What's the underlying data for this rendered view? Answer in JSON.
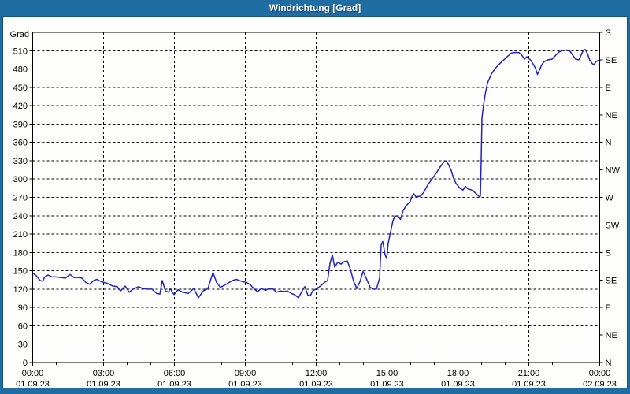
{
  "window": {
    "title": "Windrichtung [Grad]"
  },
  "colors": {
    "frame": "#1f6da3",
    "frame_inner_edge": "#16507d",
    "title_text": "#ffffff",
    "content_bg": "#fdfdfa",
    "plot_bg": "#fefefc",
    "axis": "#000000",
    "grid": "#000000",
    "line": "#2222c4",
    "label_text": "#000000"
  },
  "chart_data": {
    "type": "line",
    "title": "Windrichtung [Grad]",
    "ylabel_left": "Grad",
    "ylim": [
      0,
      540
    ],
    "xlim_hours": [
      0,
      24
    ],
    "grid": "dashed",
    "y_left_ticks": [
      0,
      30,
      60,
      90,
      120,
      150,
      180,
      210,
      240,
      270,
      300,
      330,
      360,
      390,
      420,
      450,
      480,
      510
    ],
    "y_right_ticks": [
      {
        "deg": 540,
        "label": "S"
      },
      {
        "deg": 495,
        "label": "SE"
      },
      {
        "deg": 450,
        "label": "E"
      },
      {
        "deg": 405,
        "label": "NE"
      },
      {
        "deg": 360,
        "label": "N"
      },
      {
        "deg": 315,
        "label": "NW"
      },
      {
        "deg": 270,
        "label": "W"
      },
      {
        "deg": 225,
        "label": "SW"
      },
      {
        "deg": 180,
        "label": "S"
      },
      {
        "deg": 135,
        "label": "SE"
      },
      {
        "deg": 90,
        "label": "E"
      },
      {
        "deg": 45,
        "label": "NE"
      },
      {
        "deg": 0,
        "label": "N"
      }
    ],
    "x_major_ticks": [
      {
        "hour": 0,
        "time": "00:00",
        "date": "01.09.23"
      },
      {
        "hour": 3,
        "time": "03:00",
        "date": "01.09.23"
      },
      {
        "hour": 6,
        "time": "06:00",
        "date": "01.09.23"
      },
      {
        "hour": 9,
        "time": "09:00",
        "date": "01.09.23"
      },
      {
        "hour": 12,
        "time": "12:00",
        "date": "01.09.23"
      },
      {
        "hour": 15,
        "time": "15:00",
        "date": "01.09.23"
      },
      {
        "hour": 18,
        "time": "18:00",
        "date": "01.09.23"
      },
      {
        "hour": 21,
        "time": "21:00",
        "date": "01.09.23"
      },
      {
        "hour": 24,
        "time": "00:00",
        "date": "02.09.23"
      }
    ],
    "x_minor_step_hours": 1,
    "series": [
      {
        "name": "Windrichtung",
        "color": "#2222c4",
        "points_t_min_deg": [
          [
            0,
            146
          ],
          [
            9,
            142
          ],
          [
            19,
            134
          ],
          [
            25,
            133
          ],
          [
            31,
            140
          ],
          [
            39,
            143
          ],
          [
            49,
            140
          ],
          [
            59,
            140
          ],
          [
            71,
            139
          ],
          [
            83,
            138
          ],
          [
            95,
            144
          ],
          [
            105,
            139
          ],
          [
            115,
            139
          ],
          [
            125,
            138
          ],
          [
            135,
            131
          ],
          [
            145,
            128
          ],
          [
            155,
            134
          ],
          [
            163,
            136
          ],
          [
            175,
            132
          ],
          [
            181,
            131
          ],
          [
            191,
            129
          ],
          [
            203,
            125
          ],
          [
            215,
            124
          ],
          [
            223,
            117
          ],
          [
            235,
            125
          ],
          [
            245,
            115
          ],
          [
            255,
            120
          ],
          [
            269,
            124
          ],
          [
            279,
            121
          ],
          [
            291,
            120
          ],
          [
            303,
            120
          ],
          [
            315,
            113
          ],
          [
            323,
            112
          ],
          [
            329,
            134
          ],
          [
            337,
            117
          ],
          [
            345,
            115
          ],
          [
            349,
            121
          ],
          [
            359,
            111
          ],
          [
            369,
            119
          ],
          [
            381,
            115
          ],
          [
            395,
            113
          ],
          [
            409,
            121
          ],
          [
            421,
            106
          ],
          [
            433,
            117
          ],
          [
            445,
            121
          ],
          [
            458,
            147
          ],
          [
            467,
            131
          ],
          [
            477,
            123
          ],
          [
            489,
            127
          ],
          [
            499,
            131
          ],
          [
            507,
            134
          ],
          [
            517,
            136
          ],
          [
            525,
            134
          ],
          [
            535,
            132
          ],
          [
            543,
            131
          ],
          [
            553,
            127
          ],
          [
            563,
            120
          ],
          [
            571,
            116
          ],
          [
            581,
            121
          ],
          [
            591,
            118
          ],
          [
            601,
            121
          ],
          [
            611,
            120
          ],
          [
            619,
            115
          ],
          [
            629,
            117
          ],
          [
            639,
            116
          ],
          [
            647,
            117
          ],
          [
            657,
            113
          ],
          [
            665,
            111
          ],
          [
            675,
            106
          ],
          [
            685,
            118
          ],
          [
            691,
            124
          ],
          [
            699,
            110
          ],
          [
            705,
            109
          ],
          [
            711,
            117
          ],
          [
            721,
            121
          ],
          [
            731,
            125
          ],
          [
            741,
            131
          ],
          [
            749,
            134
          ],
          [
            755,
            162
          ],
          [
            761,
            176
          ],
          [
            767,
            156
          ],
          [
            775,
            164
          ],
          [
            783,
            161
          ],
          [
            791,
            165
          ],
          [
            799,
            166
          ],
          [
            807,
            152
          ],
          [
            815,
            133
          ],
          [
            823,
            121
          ],
          [
            831,
            132
          ],
          [
            839,
            149
          ],
          [
            847,
            138
          ],
          [
            857,
            123
          ],
          [
            865,
            120
          ],
          [
            873,
            120
          ],
          [
            881,
            138
          ],
          [
            885,
            192
          ],
          [
            889,
            198
          ],
          [
            895,
            176
          ],
          [
            899,
            170
          ],
          [
            903,
            195
          ],
          [
            907,
            208
          ],
          [
            911,
            220
          ],
          [
            915,
            232
          ],
          [
            919,
            238
          ],
          [
            925,
            240
          ],
          [
            929,
            238
          ],
          [
            934,
            234
          ],
          [
            941,
            249
          ],
          [
            951,
            258
          ],
          [
            959,
            264
          ],
          [
            964,
            273
          ],
          [
            968,
            276
          ],
          [
            973,
            271
          ],
          [
            985,
            272
          ],
          [
            993,
            278
          ],
          [
            1003,
            290
          ],
          [
            1013,
            299
          ],
          [
            1025,
            310
          ],
          [
            1035,
            320
          ],
          [
            1043,
            327
          ],
          [
            1049,
            330
          ],
          [
            1055,
            325
          ],
          [
            1063,
            314
          ],
          [
            1069,
            301
          ],
          [
            1075,
            293
          ],
          [
            1085,
            285
          ],
          [
            1093,
            282
          ],
          [
            1099,
            288
          ],
          [
            1105,
            284
          ],
          [
            1115,
            282
          ],
          [
            1125,
            277
          ],
          [
            1131,
            273
          ],
          [
            1135,
            271
          ],
          [
            1137,
            272
          ],
          [
            1139,
            330
          ],
          [
            1141,
            400
          ],
          [
            1145,
            421
          ],
          [
            1149,
            438
          ],
          [
            1155,
            457
          ],
          [
            1165,
            472
          ],
          [
            1175,
            481
          ],
          [
            1185,
            488
          ],
          [
            1195,
            494
          ],
          [
            1205,
            500
          ],
          [
            1215,
            506
          ],
          [
            1223,
            507
          ],
          [
            1235,
            507
          ],
          [
            1243,
            502
          ],
          [
            1249,
            496
          ],
          [
            1255,
            500
          ],
          [
            1261,
            497
          ],
          [
            1265,
            494
          ],
          [
            1271,
            488
          ],
          [
            1277,
            481
          ],
          [
            1282,
            471
          ],
          [
            1287,
            478
          ],
          [
            1293,
            487
          ],
          [
            1299,
            492
          ],
          [
            1309,
            495
          ],
          [
            1319,
            496
          ],
          [
            1329,
            503
          ],
          [
            1337,
            508
          ],
          [
            1345,
            510
          ],
          [
            1357,
            511
          ],
          [
            1365,
            509
          ],
          [
            1371,
            503
          ],
          [
            1379,
            496
          ],
          [
            1387,
            495
          ],
          [
            1391,
            500
          ],
          [
            1397,
            509
          ],
          [
            1403,
            512
          ],
          [
            1409,
            505
          ],
          [
            1415,
            494
          ],
          [
            1421,
            489
          ],
          [
            1425,
            487
          ],
          [
            1431,
            492
          ],
          [
            1436,
            494
          ],
          [
            1440,
            492
          ]
        ]
      }
    ]
  }
}
